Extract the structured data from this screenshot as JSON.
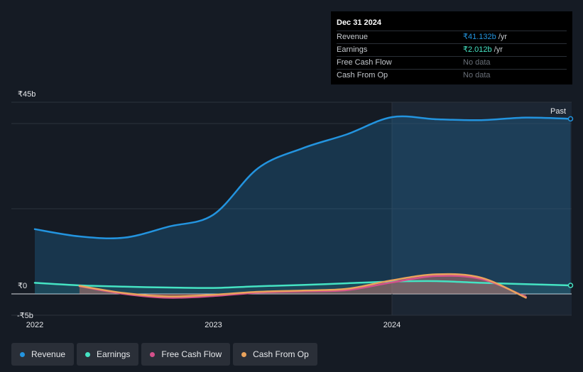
{
  "tooltip": {
    "date": "Dec 31 2024",
    "rows": [
      {
        "label": "Revenue",
        "value": "₹41.132b",
        "unit": "/yr"
      },
      {
        "label": "Earnings",
        "value": "₹2.012b",
        "unit": "/yr"
      },
      {
        "label": "Free Cash Flow",
        "value": "No data",
        "unit": ""
      },
      {
        "label": "Cash From Op",
        "value": "No data",
        "unit": ""
      }
    ]
  },
  "past_label": "Past",
  "legend": [
    {
      "label": "Revenue",
      "color": "#2394df"
    },
    {
      "label": "Earnings",
      "color": "#45e3c3"
    },
    {
      "label": "Free Cash Flow",
      "color": "#d4508b"
    },
    {
      "label": "Cash From Op",
      "color": "#e9a35c"
    }
  ],
  "chart_data": {
    "type": "area",
    "y_unit": "₹b",
    "ylim": [
      -5,
      45
    ],
    "y_ticks": [
      {
        "value": 45,
        "label": "₹45b"
      },
      {
        "value": 0,
        "label": "₹0"
      },
      {
        "value": -5,
        "label": "-₹5b"
      }
    ],
    "x_ticks": [
      {
        "value": 2022.0,
        "label": "2022"
      },
      {
        "value": 2023.0,
        "label": "2023"
      },
      {
        "value": 2024.0,
        "label": "2024"
      }
    ],
    "xlim": [
      2021.9,
      2025.0
    ],
    "highlight_start": 2024.0,
    "series": [
      {
        "name": "Revenue",
        "color": "#2394df",
        "x": [
          2022.0,
          2022.25,
          2022.5,
          2022.75,
          2023.0,
          2023.25,
          2023.5,
          2023.75,
          2024.0,
          2024.25,
          2024.5,
          2024.75,
          2025.0
        ],
        "y": [
          15.2,
          13.5,
          13.2,
          15.8,
          18.6,
          29.5,
          34.2,
          37.5,
          41.5,
          41.0,
          40.8,
          41.4,
          41.1
        ]
      },
      {
        "name": "Earnings",
        "color": "#45e3c3",
        "x": [
          2022.0,
          2022.25,
          2022.5,
          2022.75,
          2023.0,
          2023.25,
          2023.5,
          2023.75,
          2024.0,
          2024.25,
          2024.5,
          2024.75,
          2025.0
        ],
        "y": [
          2.6,
          2.0,
          1.7,
          1.5,
          1.4,
          1.8,
          2.1,
          2.5,
          2.9,
          3.0,
          2.6,
          2.3,
          2.0
        ]
      },
      {
        "name": "Free Cash Flow",
        "color": "#d4508b",
        "x": [
          2022.25,
          2022.5,
          2022.75,
          2023.0,
          2023.25,
          2023.5,
          2023.75,
          2024.0,
          2024.25,
          2024.5,
          2024.75
        ],
        "y": [
          1.8,
          0.0,
          -0.9,
          -0.5,
          0.3,
          0.6,
          0.9,
          2.7,
          4.2,
          3.5,
          -0.7
        ]
      },
      {
        "name": "Cash From Op",
        "color": "#e9a35c",
        "x": [
          2022.25,
          2022.5,
          2022.75,
          2023.0,
          2023.25,
          2023.5,
          2023.75,
          2024.0,
          2024.25,
          2024.5,
          2024.75
        ],
        "y": [
          1.9,
          0.2,
          -0.6,
          -0.2,
          0.5,
          0.8,
          1.2,
          3.2,
          4.6,
          3.8,
          -0.9
        ]
      }
    ]
  }
}
